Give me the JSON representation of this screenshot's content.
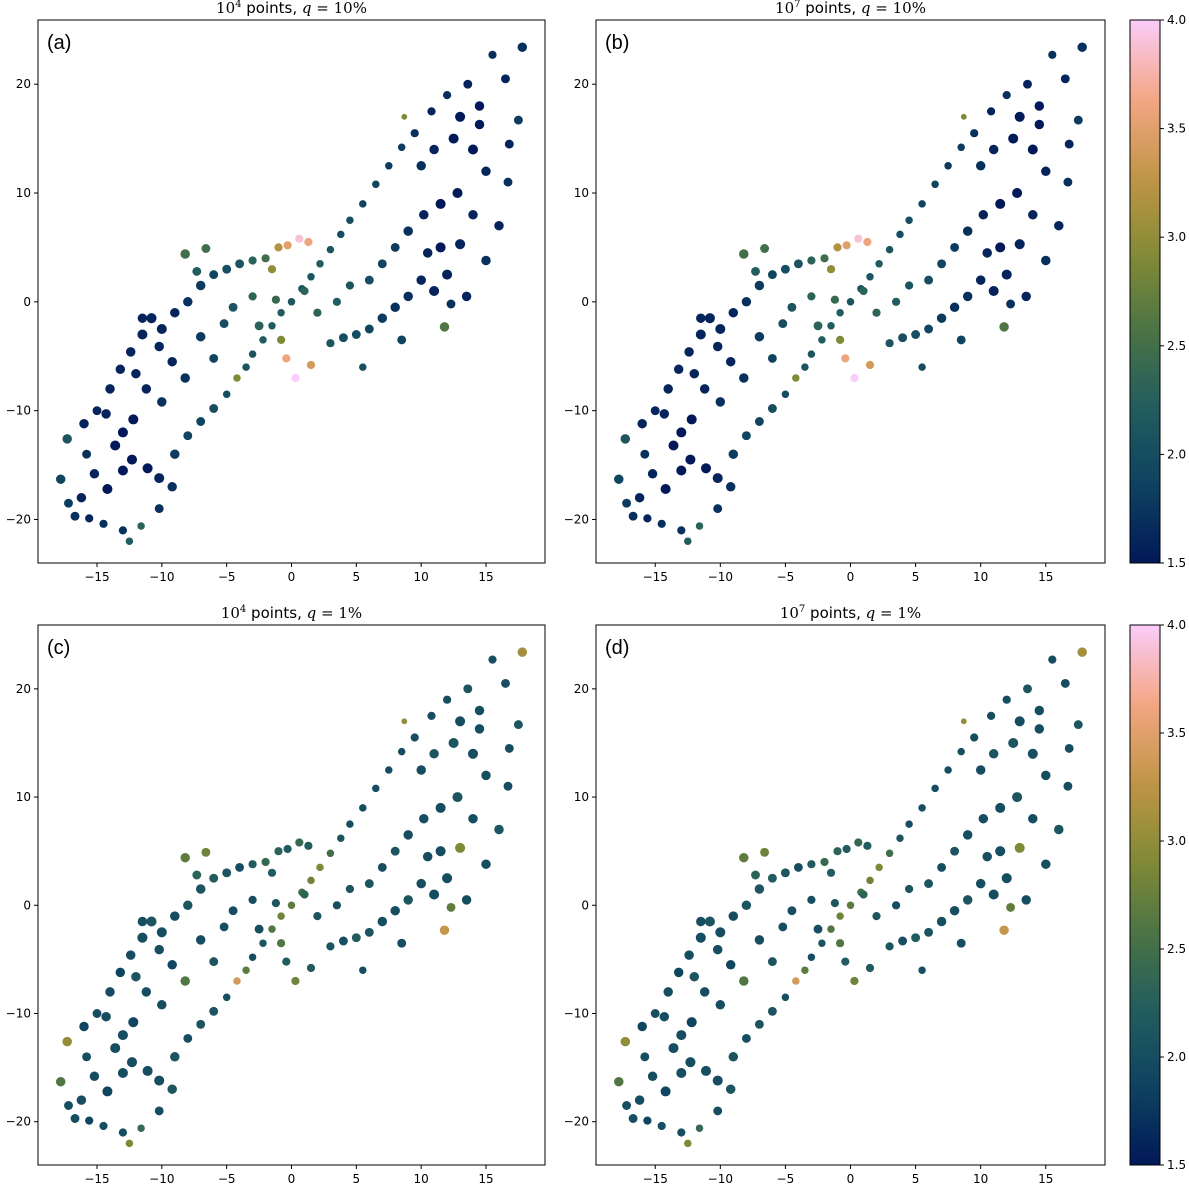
{
  "colormap": {
    "name": "batlow",
    "stops": [
      "#011959",
      "#0E4260",
      "#225D5F",
      "#4A7444",
      "#858B35",
      "#C29547",
      "#F4A785",
      "#FACCFA"
    ]
  },
  "chart_data": {
    "type": "scatter",
    "xlim": [
      -19.55,
      19.55
    ],
    "ylim": [
      -24.0,
      25.9
    ],
    "xticks": [
      -15,
      -10,
      -5,
      0,
      5,
      10,
      15
    ],
    "yticks": [
      -20,
      -10,
      0,
      10,
      20
    ],
    "colorbar": {
      "range": [
        1.5,
        4.0
      ],
      "ticks": [
        "1.5",
        "2.0",
        "2.5",
        "3.0",
        "3.5",
        "4.0"
      ]
    },
    "point_fields": [
      "x",
      "y",
      "size",
      "color_q10",
      "color_q1"
    ],
    "panels": [
      {
        "label": "(a)",
        "title": {
          "base": "10",
          "exp": "4",
          "text": " points, ",
          "var": "q",
          "val": " = 10%"
        },
        "color_field": "color_q10",
        "colorbar": false
      },
      {
        "label": "(b)",
        "title": {
          "base": "10",
          "exp": "7",
          "text": " points, ",
          "var": "q",
          "val": " = 10%"
        },
        "color_field": "color_q10",
        "colorbar": true
      },
      {
        "label": "(c)",
        "title": {
          "base": "10",
          "exp": "4",
          "text": " points, ",
          "var": "q",
          "val": " = 1%"
        },
        "color_field": "color_q1",
        "colorbar": false
      },
      {
        "label": "(d)",
        "title": {
          "base": "10",
          "exp": "7",
          "text": " points, ",
          "var": "q",
          "val": " = 1%"
        },
        "color_field": "color_q1",
        "colorbar": true
      }
    ],
    "points": [
      [
        -17.8,
        -16.3,
        40,
        1.9,
        2.6
      ],
      [
        -17.2,
        -18.5,
        35,
        1.8,
        2.0
      ],
      [
        -16.7,
        -19.7,
        35,
        1.7,
        2.0
      ],
      [
        -15.6,
        -19.9,
        30,
        1.6,
        1.9
      ],
      [
        -14.5,
        -20.4,
        30,
        1.7,
        2.0
      ],
      [
        -13,
        -21,
        30,
        1.7,
        2.0
      ],
      [
        -12.5,
        -22,
        25,
        2.2,
        2.9
      ],
      [
        -17.3,
        -12.6,
        40,
        2.1,
        3.0
      ],
      [
        -16,
        -11.2,
        40,
        1.6,
        1.9
      ],
      [
        -15,
        -10,
        35,
        1.6,
        2.0
      ],
      [
        -14,
        -8,
        40,
        1.6,
        2.0
      ],
      [
        -13.2,
        -6.2,
        40,
        1.6,
        1.9
      ],
      [
        -12.4,
        -4.6,
        40,
        1.6,
        2.0
      ],
      [
        -11.5,
        -3,
        45,
        1.6,
        2.0
      ],
      [
        -10.8,
        -1.5,
        45,
        1.6,
        2.1
      ],
      [
        -10,
        -2.5,
        45,
        1.6,
        2.0
      ],
      [
        -9,
        -1,
        40,
        1.6,
        2.0
      ],
      [
        -8,
        0,
        40,
        1.7,
        2.1
      ],
      [
        -7,
        1.5,
        40,
        1.8,
        2.1
      ],
      [
        -6,
        2.5,
        35,
        1.9,
        2.2
      ],
      [
        -5,
        3,
        35,
        2.0,
        2.1
      ],
      [
        -4,
        3.5,
        35,
        2.1,
        2.0
      ],
      [
        -3,
        3.8,
        30,
        2.3,
        2.2
      ],
      [
        -2,
        4,
        30,
        2.5,
        2.4
      ],
      [
        -13,
        -12,
        45,
        1.5,
        2.0
      ],
      [
        -12.2,
        -10.8,
        45,
        1.5,
        1.9
      ],
      [
        -13.6,
        -13.2,
        45,
        1.5,
        2.0
      ],
      [
        -12.3,
        -14.5,
        45,
        1.5,
        2.0
      ],
      [
        -11.1,
        -15.3,
        45,
        1.5,
        2.0
      ],
      [
        -10.2,
        -16.2,
        45,
        1.6,
        2.0
      ],
      [
        -9.2,
        -17,
        40,
        1.7,
        2.1
      ],
      [
        -10.2,
        -19,
        35,
        1.7,
        2.0
      ],
      [
        -11.6,
        -20.6,
        25,
        2.3,
        2.4
      ],
      [
        -9,
        -14,
        40,
        1.8,
        2.1
      ],
      [
        -8,
        -12.3,
        35,
        1.9,
        2.0
      ],
      [
        -7,
        -11,
        35,
        1.9,
        2.1
      ],
      [
        -6,
        -9.8,
        35,
        2.0,
        2.1
      ],
      [
        -8.2,
        -7,
        40,
        1.7,
        2.6
      ],
      [
        -9.2,
        -5.5,
        40,
        1.6,
        1.9
      ],
      [
        -10.2,
        -4.1,
        40,
        1.6,
        2.0
      ],
      [
        -7,
        -3.2,
        40,
        1.8,
        2.0
      ],
      [
        -5.2,
        -2,
        35,
        2.0,
        2.0
      ],
      [
        -6,
        -5.2,
        35,
        1.9,
        2.1
      ],
      [
        -13,
        -15.5,
        45,
        1.5,
        2.0
      ],
      [
        -14.2,
        -17.2,
        45,
        1.5,
        1.9
      ],
      [
        -15.2,
        -15.8,
        40,
        1.6,
        2.0
      ],
      [
        -16.2,
        -18,
        40,
        1.6,
        2.0
      ],
      [
        -11.2,
        -8,
        40,
        1.6,
        2.0
      ],
      [
        -12,
        -6.6,
        40,
        1.6,
        2.1
      ],
      [
        -10,
        -9.2,
        40,
        1.7,
        2.0
      ],
      [
        -14.3,
        -10.3,
        40,
        1.6,
        2.0
      ],
      [
        -8.2,
        4.4,
        40,
        2.5,
        2.7
      ],
      [
        -6.6,
        4.9,
        35,
        2.5,
        2.8
      ],
      [
        -7.3,
        2.8,
        35,
        2.2,
        2.3
      ],
      [
        -2.5,
        -2.2,
        35,
        2.3,
        2.0
      ],
      [
        -1.2,
        0.2,
        30,
        2.4,
        2.1
      ],
      [
        -11.5,
        -1.5,
        40,
        1.6,
        2.0
      ],
      [
        -15.8,
        -14,
        35,
        1.7,
        2.0
      ],
      [
        -5,
        -8.5,
        25,
        2.0,
        2.0
      ],
      [
        -4.2,
        -7,
        25,
        2.9,
        3.4
      ],
      [
        -3.5,
        -6,
        25,
        2.1,
        2.7
      ],
      [
        -3,
        -4.8,
        25,
        2.1,
        2.0
      ],
      [
        -2.2,
        -3.5,
        25,
        2.2,
        2.1
      ],
      [
        -1.5,
        -2.2,
        25,
        2.2,
        2.6
      ],
      [
        -0.8,
        -1,
        25,
        2.2,
        2.8
      ],
      [
        0,
        0,
        25,
        2.1,
        2.7
      ],
      [
        0.8,
        1.2,
        25,
        2.1,
        2.5
      ],
      [
        1.5,
        2.3,
        25,
        2.1,
        2.8
      ],
      [
        2.2,
        3.5,
        25,
        2.2,
        2.9
      ],
      [
        3,
        4.8,
        25,
        2.1,
        2.5
      ],
      [
        3.8,
        6.2,
        25,
        2.0,
        2.1
      ],
      [
        4.5,
        7.5,
        25,
        2.0,
        2.0
      ],
      [
        5.5,
        9,
        25,
        1.9,
        2.0
      ],
      [
        6.5,
        10.8,
        25,
        1.9,
        2.0
      ],
      [
        7.5,
        12.5,
        25,
        1.8,
        2.0
      ],
      [
        8.5,
        14.2,
        25,
        1.8,
        2.0
      ],
      [
        -1,
        5,
        30,
        3.2,
        2.3
      ],
      [
        -0.3,
        5.2,
        30,
        3.5,
        2.2
      ],
      [
        0.6,
        5.8,
        30,
        3.9,
        2.4
      ],
      [
        1.3,
        5.5,
        30,
        3.6,
        2.2
      ],
      [
        -0.4,
        -5.2,
        30,
        3.6,
        2.2
      ],
      [
        0.3,
        -7,
        30,
        4.0,
        2.8
      ],
      [
        1.5,
        -5.8,
        30,
        3.4,
        2.2
      ],
      [
        -1.5,
        3,
        30,
        3.0,
        2.2
      ],
      [
        -0.8,
        -3.5,
        30,
        2.9,
        2.6
      ],
      [
        8.7,
        17,
        15,
        2.9,
        3.0
      ],
      [
        17.8,
        23.4,
        40,
        1.7,
        3.1
      ],
      [
        17.5,
        16.7,
        35,
        1.8,
        2.1
      ],
      [
        15.5,
        22.7,
        30,
        1.7,
        2.0
      ],
      [
        16.5,
        20.5,
        35,
        1.6,
        2.0
      ],
      [
        13.6,
        20,
        35,
        1.6,
        2.1
      ],
      [
        14.5,
        18,
        40,
        1.5,
        2.0
      ],
      [
        13,
        17,
        45,
        1.5,
        2.0
      ],
      [
        12.5,
        15,
        45,
        1.5,
        2.1
      ],
      [
        14,
        14,
        45,
        1.5,
        2.0
      ],
      [
        15,
        12,
        40,
        1.6,
        2.0
      ],
      [
        16.7,
        11,
        35,
        1.7,
        2.0
      ],
      [
        16,
        7,
        40,
        1.6,
        2.1
      ],
      [
        15,
        3.8,
        40,
        1.7,
        2.0
      ],
      [
        13,
        5.3,
        45,
        1.6,
        2.9
      ],
      [
        12,
        2.5,
        45,
        1.6,
        2.0
      ],
      [
        11,
        1,
        45,
        1.6,
        2.0
      ],
      [
        10,
        2,
        40,
        1.6,
        2.0
      ],
      [
        9,
        0.5,
        40,
        1.7,
        2.1
      ],
      [
        8,
        -0.5,
        40,
        1.7,
        2.0
      ],
      [
        7,
        -1.5,
        40,
        1.8,
        2.0
      ],
      [
        6,
        -2.5,
        35,
        1.9,
        2.1
      ],
      [
        5,
        -3,
        35,
        2.0,
        2.2
      ],
      [
        4,
        -3.3,
        35,
        2.0,
        2.0
      ],
      [
        3,
        -3.8,
        30,
        2.1,
        2.1
      ],
      [
        11.8,
        -2.3,
        40,
        2.6,
        3.3
      ],
      [
        12.3,
        -0.2,
        35,
        1.7,
        2.7
      ],
      [
        11.5,
        5,
        45,
        1.5,
        2.0
      ],
      [
        10.5,
        4.5,
        40,
        1.6,
        2.0
      ],
      [
        11.5,
        9,
        45,
        1.5,
        2.0
      ],
      [
        12.8,
        10,
        45,
        1.5,
        2.1
      ],
      [
        10.2,
        8,
        40,
        1.6,
        2.0
      ],
      [
        9,
        6.5,
        40,
        1.7,
        2.0
      ],
      [
        8,
        5,
        35,
        1.8,
        2.1
      ],
      [
        7,
        3.5,
        35,
        1.9,
        2.0
      ],
      [
        6,
        2,
        35,
        2.0,
        2.1
      ],
      [
        10,
        12.5,
        40,
        1.7,
        2.0
      ],
      [
        11,
        14,
        40,
        1.6,
        2.1
      ],
      [
        9.5,
        15.5,
        30,
        1.7,
        2.0
      ],
      [
        10.8,
        17.5,
        30,
        1.6,
        2.0
      ],
      [
        12,
        19,
        30,
        1.7,
        2.0
      ],
      [
        8.5,
        -3.5,
        35,
        1.9,
        2.0
      ],
      [
        14,
        8,
        40,
        1.6,
        2.0
      ],
      [
        13.5,
        0.5,
        40,
        1.6,
        2.0
      ],
      [
        5.5,
        -6,
        25,
        2.0,
        2.0
      ],
      [
        3.5,
        0,
        30,
        2.2,
        2.0
      ],
      [
        2,
        -1,
        30,
        2.3,
        2.1
      ],
      [
        1,
        1,
        30,
        2.3,
        2.3
      ],
      [
        4.5,
        1.5,
        30,
        2.1,
        2.1
      ],
      [
        -3,
        0.5,
        30,
        2.3,
        2.0
      ],
      [
        -4.5,
        -0.5,
        35,
        2.1,
        2.0
      ],
      [
        16.8,
        14.5,
        35,
        1.6,
        2.0
      ],
      [
        14.5,
        16.3,
        40,
        1.5,
        2.0
      ]
    ]
  }
}
